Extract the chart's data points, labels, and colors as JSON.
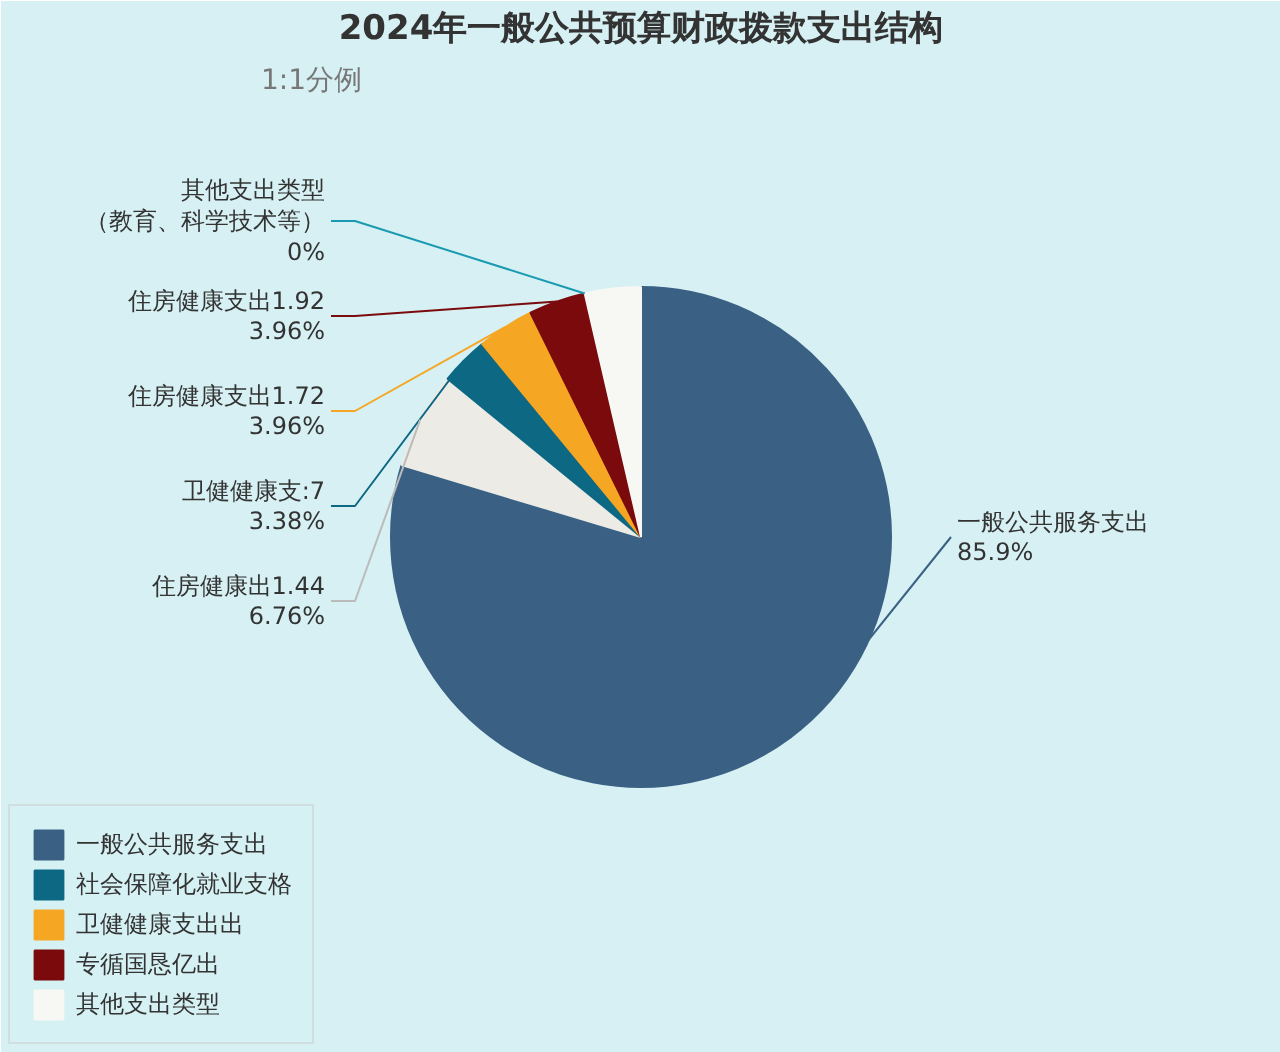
{
  "chart_data": {
    "type": "pie",
    "title": "2024年一般公共预算财政拨款支出结构",
    "subtitle": "1:1分例",
    "categories": [
      "一般公共服务支出",
      "住房健康出1.44",
      "卫健健康支:7",
      "住房健康支出1.72",
      "住房健康支出1.92",
      "其他支出类型（教育、科学技术等）",
      null
    ],
    "values": [
      85.9,
      6.76,
      3.38,
      3.96,
      3.96,
      0,
      3.9
    ],
    "colors": [
      "#3a6184",
      "#ecebe6",
      "#0d6884",
      "#f5a623",
      "#7a0a0c",
      "#1a9ab0",
      "#f7f7f4"
    ],
    "value_labels": [
      "85.9%",
      "6.76%",
      "3.38%",
      "3.96%",
      "3.96%",
      "0%",
      null
    ],
    "annotations": [
      "一般公共服务支出",
      "社会保障化就业支格",
      "卫健健康支出出",
      "专循国恳亿出",
      "其他支出类型"
    ],
    "legend": "bottom left"
  }
}
